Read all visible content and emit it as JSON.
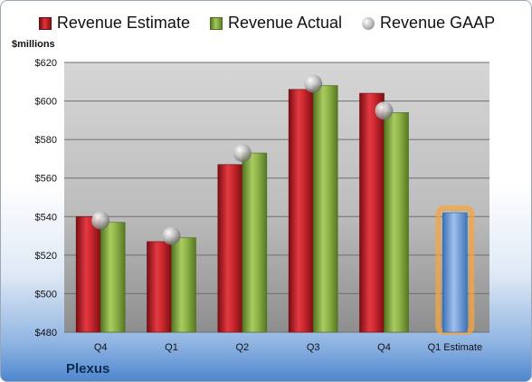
{
  "company": "Plexus",
  "chart_data": {
    "type": "bar",
    "ylabel": "$millions",
    "ylim": [
      480,
      620
    ],
    "yticks": [
      480,
      500,
      520,
      540,
      560,
      580,
      600,
      620
    ],
    "ytick_labels": [
      "$480",
      "$500",
      "$520",
      "$540",
      "$560",
      "$580",
      "$600",
      "$620"
    ],
    "categories": [
      "Q4",
      "Q1",
      "Q2",
      "Q3",
      "Q4",
      "Q1 Estimate"
    ],
    "series": [
      {
        "name": "Revenue Estimate",
        "values": [
          540,
          527,
          567,
          606,
          604,
          null
        ]
      },
      {
        "name": "Revenue Actual",
        "values": [
          537,
          529,
          573,
          608,
          594,
          null
        ]
      },
      {
        "name": "Revenue GAAP",
        "values": [
          538,
          530,
          573,
          609,
          595,
          null
        ]
      }
    ],
    "forecast": {
      "category": "Q1 Estimate",
      "value": 542
    },
    "legend_position": "top",
    "grid": true
  },
  "colors": {
    "estimate": "#c8252c",
    "actual": "#8db048",
    "gaap": "#b8b8b8",
    "forecast": "#6f9fdc",
    "forecast_glow": "#f4a640"
  }
}
